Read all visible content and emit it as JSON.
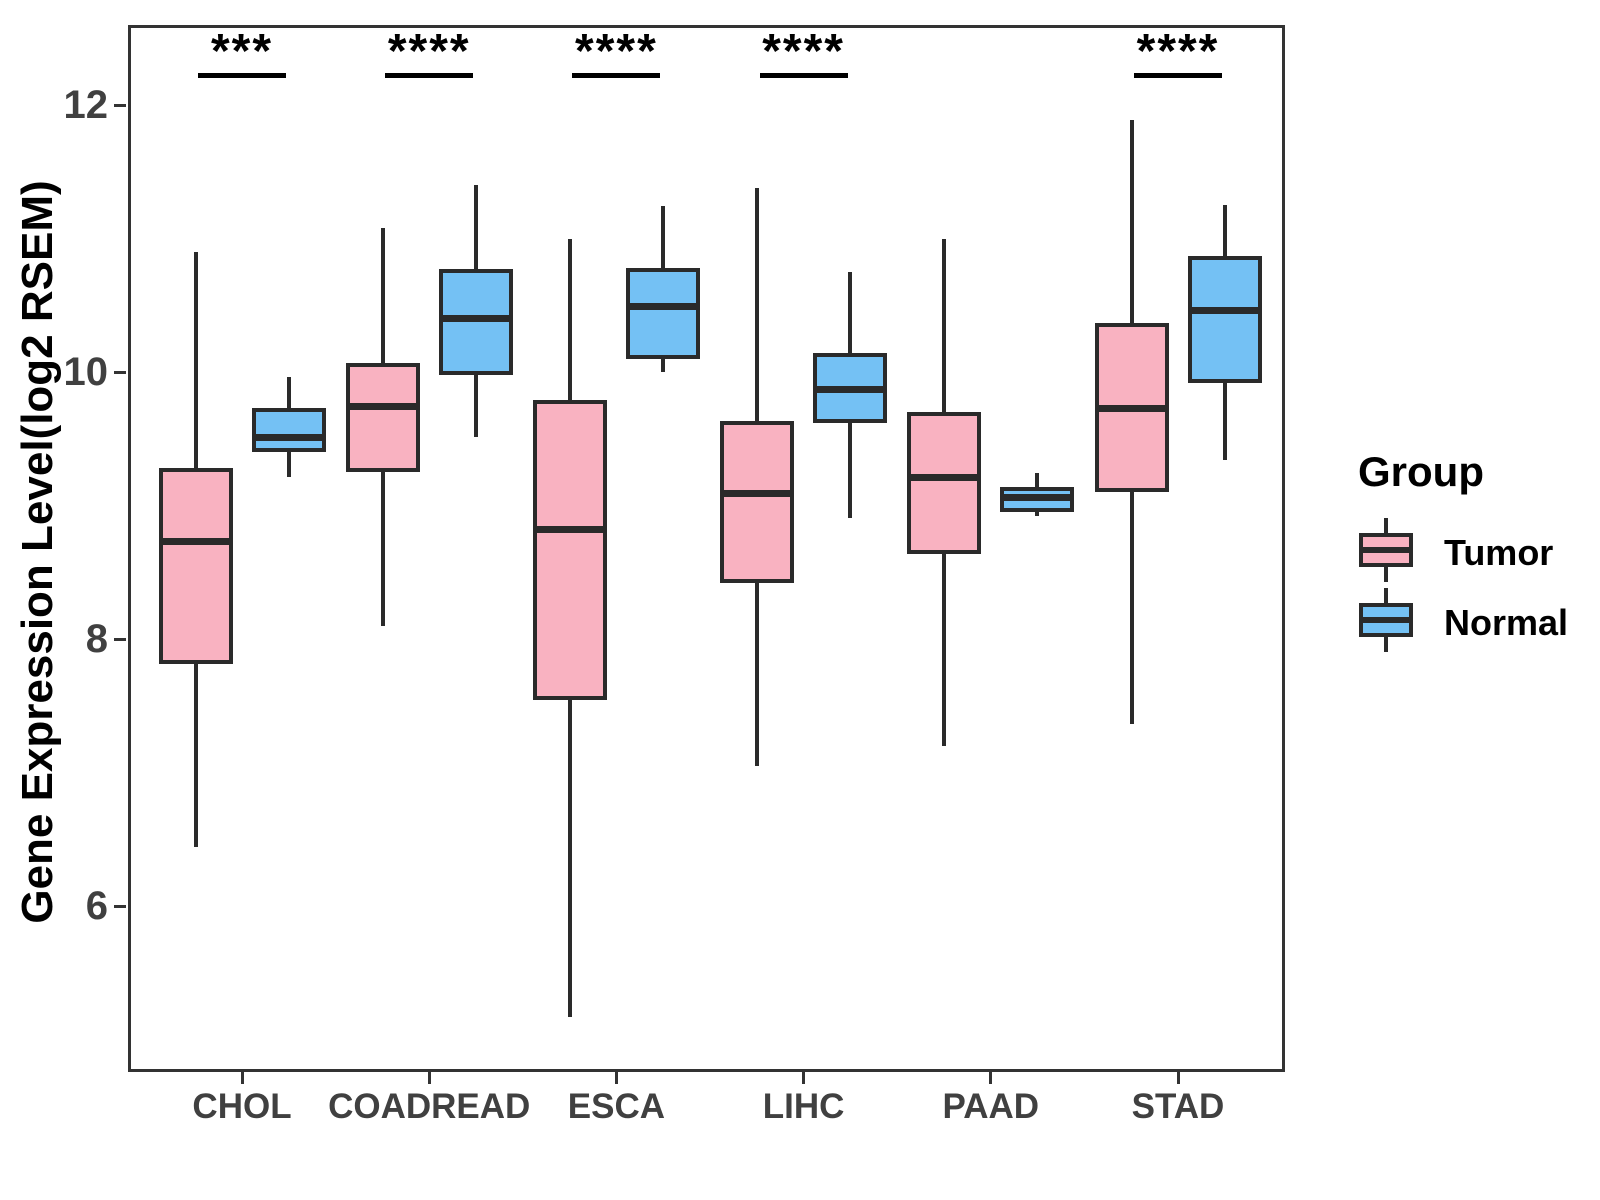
{
  "y_axis": {
    "label": "Gene Expression Level(log2 RSEM)",
    "ticks": [
      12,
      10,
      8,
      6
    ]
  },
  "x_axis": {
    "categories": [
      "CHOL",
      "COADREAD",
      "ESCA",
      "LIHC",
      "PAAD",
      "STAD"
    ]
  },
  "legend": {
    "title": "Group",
    "items": [
      {
        "label": "Tumor",
        "color": "#F9B2C1"
      },
      {
        "label": "Normal",
        "color": "#74C1F4"
      }
    ]
  },
  "chart_data": {
    "type": "boxplot",
    "title": "",
    "xlabel": "",
    "ylabel": "Gene Expression Level(log2 RSEM)",
    "categories": [
      "CHOL",
      "COADREAD",
      "ESCA",
      "LIHC",
      "PAAD",
      "STAD"
    ],
    "significance": [
      "***",
      "****",
      "****",
      "****",
      null,
      "****"
    ],
    "ylim": [
      4.8,
      12.6
    ],
    "grid": false,
    "legend_position": "right",
    "series": [
      {
        "name": "Tumor",
        "color": "#F9B2C1",
        "boxes": [
          {
            "category": "CHOL",
            "low": 6.44,
            "q1": 7.81,
            "median": 8.73,
            "q3": 9.28,
            "high": 10.9
          },
          {
            "category": "COADREAD",
            "low": 8.1,
            "q1": 9.25,
            "median": 9.74,
            "q3": 10.07,
            "high": 11.08
          },
          {
            "category": "ESCA",
            "low": 5.17,
            "q1": 7.54,
            "median": 8.82,
            "q3": 9.79,
            "high": 11.0
          },
          {
            "category": "LIHC",
            "low": 7.05,
            "q1": 8.42,
            "median": 9.09,
            "q3": 9.63,
            "high": 11.38
          },
          {
            "category": "PAAD",
            "low": 7.2,
            "q1": 8.64,
            "median": 9.21,
            "q3": 9.7,
            "high": 11.0
          },
          {
            "category": "STAD",
            "low": 7.36,
            "q1": 9.1,
            "median": 9.73,
            "q3": 10.37,
            "high": 11.89
          }
        ]
      },
      {
        "name": "Normal",
        "color": "#74C1F4",
        "boxes": [
          {
            "category": "CHOL",
            "low": 9.21,
            "q1": 9.4,
            "median": 9.51,
            "q3": 9.73,
            "high": 9.96
          },
          {
            "category": "COADREAD",
            "low": 9.51,
            "q1": 9.98,
            "median": 10.4,
            "q3": 10.77,
            "high": 11.4
          },
          {
            "category": "ESCA",
            "low": 10.0,
            "q1": 10.1,
            "median": 10.49,
            "q3": 10.78,
            "high": 11.24
          },
          {
            "category": "LIHC",
            "low": 8.91,
            "q1": 9.62,
            "median": 9.87,
            "q3": 10.14,
            "high": 10.75
          },
          {
            "category": "PAAD",
            "low": 8.92,
            "q1": 8.95,
            "median": 9.06,
            "q3": 9.14,
            "high": 9.24
          },
          {
            "category": "STAD",
            "low": 9.34,
            "q1": 9.92,
            "median": 10.46,
            "q3": 10.87,
            "high": 11.25
          }
        ]
      }
    ]
  }
}
